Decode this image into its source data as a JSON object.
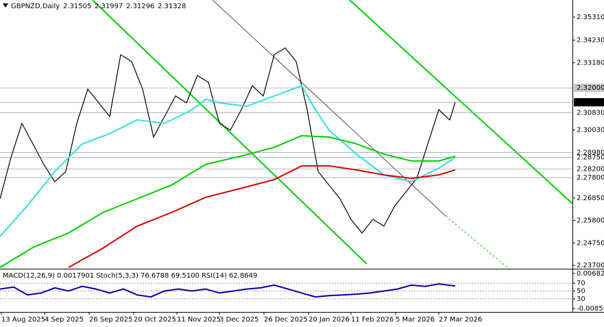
{
  "chart_data": [
    {
      "type": "line",
      "symbol": "GBPNZD,Daily",
      "ohlc": [
        2.31505,
        2.31997,
        2.31296,
        2.31328
      ],
      "xlim": [
        0,
        208.75
      ],
      "ylim": [
        2.2354,
        2.3611
      ],
      "xticks": [
        {
          "value": 0.5,
          "label": "13 Aug 2025"
        },
        {
          "value": 16.25,
          "label": "4 Sep 2025"
        },
        {
          "value": 32.5,
          "label": "26 Sep 2025"
        },
        {
          "value": 48.75,
          "label": "20 Oct 2025"
        },
        {
          "value": 64.5,
          "label": "11 Nov 2025"
        },
        {
          "value": 80,
          "label": "3 Dec 2025"
        },
        {
          "value": 96.25,
          "label": "26 Dec 2025"
        },
        {
          "value": 112.5,
          "label": "20 Jan 2026"
        },
        {
          "value": 128,
          "label": "11 Feb 2026"
        },
        {
          "value": 144.25,
          "label": "5 Mar 2026"
        },
        {
          "value": 160,
          "label": "27 Mar 2026"
        }
      ],
      "yticks": [
        {
          "value": 2.3531,
          "label": "2.35310"
        },
        {
          "value": 2.3423,
          "label": "2.34230"
        },
        {
          "value": 2.3318,
          "label": "2.33180"
        },
        {
          "value": 2.3003,
          "label": "2.30030"
        },
        {
          "value": 2.2685,
          "label": "2.26850"
        },
        {
          "value": 2.258,
          "label": "2.25800"
        },
        {
          "value": 2.2475,
          "label": "2.24750"
        },
        {
          "value": 2.237,
          "label": "2.23700"
        }
      ],
      "levels": [
        {
          "value": 2.32,
          "label": "2.32000"
        },
        {
          "value": 2.3083,
          "label": "2.30830"
        },
        {
          "value": 2.2898,
          "label": "2.28980"
        },
        {
          "value": 2.2875,
          "label": "2.28750"
        },
        {
          "value": 2.282,
          "label": "2.28200"
        },
        {
          "value": 2.278,
          "label": "2.27800"
        }
      ],
      "current_price": 2.31328,
      "series": [
        {
          "color": "#000000",
          "x": [
            0,
            4,
            8,
            12,
            16,
            20,
            24,
            28,
            32,
            36,
            40,
            44,
            48,
            52,
            56,
            60,
            64,
            68,
            72,
            76,
            80,
            84,
            88,
            92,
            96,
            100,
            104,
            108,
            112,
            116,
            120,
            124,
            128,
            132,
            136,
            140,
            144,
            148,
            152,
            156,
            160,
            164,
            166
          ],
          "values": [
            2.2681,
            2.2874,
            2.3034,
            2.2938,
            2.2841,
            2.2761,
            2.2809,
            2.3034,
            2.3194,
            2.313,
            2.3066,
            2.3355,
            2.3323,
            2.3194,
            2.297,
            2.3066,
            2.3162,
            2.313,
            2.3258,
            2.3226,
            2.3034,
            2.3002,
            2.3098,
            2.321,
            2.3162,
            2.3355,
            2.3387,
            2.3323,
            2.3098,
            2.2809,
            2.2745,
            2.2681,
            2.2585,
            2.2521,
            2.2585,
            2.2553,
            2.2649,
            2.2713,
            2.2777,
            2.2938,
            2.3098,
            2.305,
            2.3133
          ]
        },
        {
          "color": "#33dddd",
          "x": [
            0,
            10,
            20,
            30,
            40,
            50,
            60,
            70,
            75,
            80,
            90,
            100,
            110,
            115,
            120,
            130,
            140,
            150,
            160,
            166
          ],
          "values": [
            2.2505,
            2.2649,
            2.2809,
            2.2938,
            2.2986,
            2.305,
            2.3034,
            2.3098,
            2.3146,
            2.313,
            2.3114,
            2.3162,
            2.321,
            2.3098,
            2.3002,
            2.289,
            2.2793,
            2.2761,
            2.2825,
            2.2874
          ]
        },
        {
          "color": "#00cc00",
          "x": [
            0,
            12.5,
            25,
            37.5,
            50,
            62.5,
            75,
            87.5,
            100,
            110,
            120,
            130,
            140,
            150,
            160,
            166
          ],
          "values": [
            2.236,
            2.2457,
            2.2521,
            2.2617,
            2.2681,
            2.2745,
            2.2842,
            2.288,
            2.2922,
            2.2976,
            2.297,
            2.2938,
            2.289,
            2.2858,
            2.2858,
            2.288
          ]
        },
        {
          "color": "#dd0000",
          "x": [
            25,
            37.5,
            50,
            62.5,
            75,
            87.5,
            100,
            110,
            120,
            130,
            140,
            150,
            160,
            166
          ],
          "values": [
            2.236,
            2.245,
            2.2553,
            2.2617,
            2.2688,
            2.2729,
            2.2771,
            2.2835,
            2.2835,
            2.2816,
            2.2793,
            2.2777,
            2.2793,
            2.2816
          ]
        }
      ]
    },
    {
      "type": "line",
      "title": "MACD(12,26,9) 0.0017901 Stoch(5,3,3) 76.6788 69.5100 RSI(14) 62.8649",
      "xlim": [
        0,
        208.75
      ],
      "ylim": [
        0,
        100
      ],
      "yticks": [
        70,
        50,
        30
      ],
      "y2lim": [
        -0.008593,
        0.006821
      ],
      "y2ticks": [
        0.006821,
        -0.008593
      ],
      "series": [
        {
          "color": "#0000aa",
          "x": [
            0,
            5,
            10,
            15,
            20,
            25,
            30,
            35,
            40,
            45,
            50,
            55,
            60,
            65,
            70,
            75,
            80,
            85,
            90,
            95,
            100,
            105,
            110,
            115,
            120,
            125,
            130,
            135,
            140,
            145,
            150,
            155,
            160,
            166
          ],
          "values": [
            55,
            60,
            40,
            45,
            58,
            50,
            62,
            55,
            45,
            55,
            40,
            35,
            50,
            55,
            50,
            55,
            45,
            50,
            55,
            58,
            65,
            55,
            45,
            35,
            38,
            40,
            42,
            45,
            50,
            55,
            65,
            62,
            68,
            63
          ]
        }
      ]
    }
  ]
}
